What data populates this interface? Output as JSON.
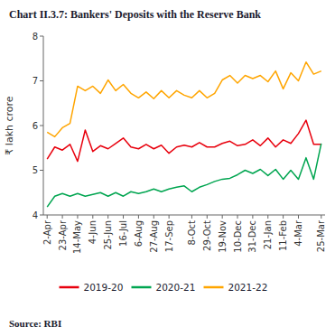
{
  "chart_data": {
    "type": "line",
    "title": "Chart II.3.7: Bankers' Deposits with the Reserve Bank",
    "ylabel": "₹ lakh crore",
    "source": "Source: RBI",
    "categories": [
      "2-Apr",
      null,
      "23-Apr",
      null,
      "14-May",
      null,
      "4-Jun",
      null,
      "25-Jun",
      null,
      "16-Jul",
      null,
      "6-Aug",
      null,
      "27-Aug",
      null,
      "17-Sep",
      null,
      null,
      "8-Oct",
      null,
      "29-Oct",
      null,
      "19-Nov",
      null,
      "10-Dec",
      null,
      "31-Dec",
      null,
      "21-Jan",
      null,
      "11-Feb",
      null,
      "4-Mar",
      null,
      null,
      "25-Mar"
    ],
    "series": [
      {
        "name": "2019-20",
        "color": "#e8000d",
        "values": [
          5.25,
          5.52,
          5.45,
          5.58,
          5.2,
          5.9,
          5.42,
          5.55,
          5.48,
          5.6,
          5.72,
          5.52,
          5.48,
          5.58,
          5.48,
          5.56,
          5.38,
          5.52,
          5.56,
          5.52,
          5.62,
          5.52,
          5.52,
          5.6,
          5.65,
          5.55,
          5.58,
          5.68,
          5.55,
          5.72,
          5.52,
          5.68,
          5.6,
          5.82,
          6.12,
          5.58,
          5.58
        ]
      },
      {
        "name": "2020-21",
        "color": "#00a550",
        "values": [
          4.18,
          4.42,
          4.48,
          4.42,
          4.48,
          4.42,
          4.46,
          4.5,
          4.42,
          4.5,
          4.42,
          4.52,
          4.48,
          4.52,
          4.58,
          4.52,
          4.58,
          4.62,
          4.65,
          4.52,
          4.62,
          4.68,
          4.75,
          4.8,
          4.82,
          4.9,
          5.0,
          4.93,
          5.02,
          4.88,
          5.02,
          4.8,
          5.0,
          4.8,
          5.28,
          4.8,
          5.6
        ]
      },
      {
        "name": "2021-22",
        "color": "#ffa500",
        "values": [
          5.85,
          5.75,
          5.95,
          6.05,
          6.88,
          6.78,
          6.88,
          6.72,
          7.02,
          6.78,
          6.92,
          6.72,
          6.62,
          6.75,
          6.6,
          6.78,
          6.62,
          6.78,
          6.68,
          6.62,
          6.78,
          6.62,
          6.72,
          7.02,
          7.12,
          6.95,
          7.12,
          7.05,
          7.12,
          6.98,
          7.22,
          6.82,
          7.18,
          7.0,
          7.42,
          7.15,
          7.22
        ]
      }
    ],
    "ylim": [
      4,
      8
    ],
    "yticks": [
      4,
      5,
      6,
      7,
      8
    ],
    "grid": false,
    "legend": "bottom"
  }
}
